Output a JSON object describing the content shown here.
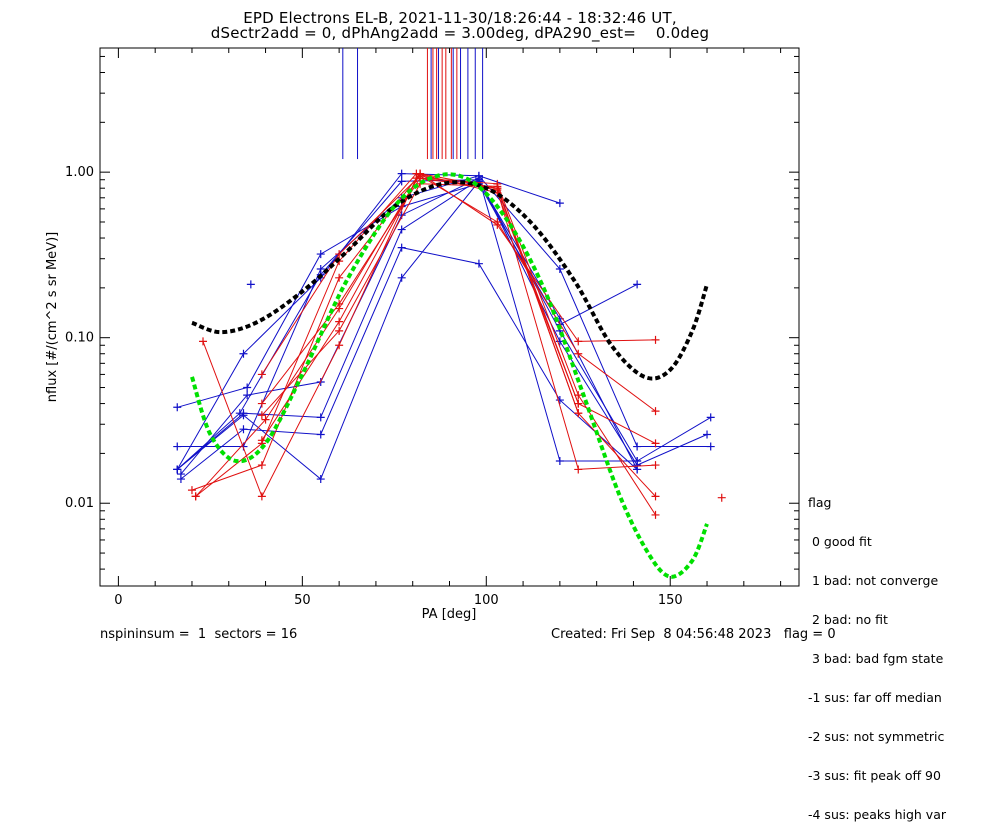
{
  "chart_data": {
    "type": "scatter",
    "title": "EPD Electrons EL-B, 2021-11-30/18:26:44 - 18:32:46 UT,",
    "subtitle": "dSectr2add = 0, dPhAng2add = 3.00deg, dPA290_est=    0.0deg",
    "xlabel": "PA [deg]",
    "ylabel": "nflux [#/(cm^2 s sr MeV)]",
    "xlim": [
      -5,
      185
    ],
    "ylim_log10": [
      -2.5,
      0.75
    ],
    "y_log": true,
    "x_ticks": [
      0,
      50,
      100,
      150
    ],
    "x_tick_labels": [
      "0",
      "50",
      "100",
      "150"
    ],
    "y_ticks": [
      0.01,
      0.1,
      1.0
    ],
    "y_tick_labels": [
      "0.01",
      "0.10",
      "1.00"
    ],
    "colors": {
      "red": "#e01010",
      "blue": "#1010c8",
      "green": "#00e000",
      "black": "#000000"
    },
    "marker_lines_top": {
      "blue": [
        61,
        65,
        85,
        87,
        91,
        93,
        95,
        97,
        99
      ],
      "red": [
        84,
        85.5,
        86.5,
        88,
        89,
        90.5,
        92
      ]
    },
    "sweeps_blue": [
      [
        [
          16,
          0.016
        ],
        [
          34,
          0.08
        ],
        [
          55,
          0.23
        ],
        [
          77,
          0.98
        ],
        [
          98,
          0.95
        ],
        [
          120,
          0.65
        ]
      ],
      [
        [
          16,
          0.022
        ],
        [
          34,
          0.022
        ],
        [
          55,
          0.26
        ],
        [
          77,
          0.7
        ],
        [
          98,
          0.95
        ],
        [
          120,
          0.26
        ],
        [
          141,
          0.022
        ],
        [
          161,
          0.022
        ]
      ],
      [
        [
          16,
          0.038
        ],
        [
          35,
          0.05
        ],
        [
          55,
          0.32
        ],
        [
          77,
          0.62
        ],
        [
          98,
          0.85
        ],
        [
          120,
          0.12
        ],
        [
          141,
          0.21
        ]
      ],
      [
        [
          16,
          0.016
        ],
        [
          34,
          0.035
        ],
        [
          55,
          0.033
        ],
        [
          77,
          0.45
        ],
        [
          98,
          0.9
        ],
        [
          120,
          0.11
        ],
        [
          141,
          0.018
        ],
        [
          161,
          0.033
        ]
      ],
      [
        [
          17,
          0.014
        ],
        [
          34,
          0.028
        ],
        [
          55,
          0.026
        ],
        [
          77,
          0.35
        ],
        [
          98,
          0.28
        ],
        [
          120,
          0.042
        ],
        [
          141,
          0.016
        ]
      ],
      [
        [
          17,
          0.015
        ],
        [
          35,
          0.045
        ],
        [
          55,
          0.054
        ],
        [
          77,
          0.55
        ],
        [
          98,
          0.92
        ],
        [
          120,
          0.018
        ],
        [
          141,
          0.018
        ]
      ],
      [
        [
          16,
          0.016
        ],
        [
          34,
          0.034
        ],
        [
          55,
          0.014
        ],
        [
          77,
          0.23
        ],
        [
          98,
          0.88
        ],
        [
          120,
          0.13
        ],
        [
          141,
          0.016
        ]
      ],
      [
        [
          16,
          0.016
        ],
        [
          33,
          0.035
        ],
        [
          55,
          0.24
        ],
        [
          77,
          0.88
        ],
        [
          98,
          0.9
        ],
        [
          120,
          0.095
        ],
        [
          141,
          0.017
        ],
        [
          160,
          0.026
        ]
      ]
    ],
    "sweeps_red": [
      [
        [
          21,
          0.011
        ],
        [
          39,
          0.023
        ],
        [
          60,
          0.29
        ],
        [
          81,
          0.98
        ],
        [
          103,
          0.5
        ],
        [
          125,
          0.08
        ],
        [
          146,
          0.036
        ]
      ],
      [
        [
          20,
          0.012
        ],
        [
          39,
          0.017
        ],
        [
          60,
          0.23
        ],
        [
          82,
          0.98
        ],
        [
          103,
          0.48
        ],
        [
          125,
          0.095
        ],
        [
          146,
          0.097
        ]
      ],
      [
        [
          21,
          0.011
        ],
        [
          40,
          0.032
        ],
        [
          60,
          0.15
        ],
        [
          82,
          0.97
        ],
        [
          103,
          0.75
        ],
        [
          125,
          0.04
        ],
        [
          146,
          0.023
        ]
      ],
      [
        [
          23,
          0.095
        ],
        [
          39,
          0.011
        ],
        [
          60,
          0.09
        ],
        [
          81,
          0.92
        ],
        [
          103,
          0.8
        ],
        [
          125,
          0.035
        ],
        [
          146,
          0.011
        ]
      ],
      [
        [
          39,
          0.04
        ],
        [
          60,
          0.16
        ],
        [
          82,
          0.92
        ],
        [
          103,
          0.85
        ],
        [
          125,
          0.045
        ],
        [
          146,
          0.0085
        ]
      ],
      [
        [
          39,
          0.06
        ],
        [
          60,
          0.32
        ],
        [
          82,
          0.95
        ],
        [
          103,
          0.78
        ],
        [
          125,
          0.016
        ],
        [
          146,
          0.017
        ]
      ],
      [
        [
          39,
          0.034
        ],
        [
          60,
          0.11
        ],
        [
          82,
          0.85
        ],
        [
          103,
          0.82
        ],
        [
          125,
          0.035
        ]
      ],
      [
        [
          39,
          0.024
        ],
        [
          60,
          0.125
        ],
        [
          82,
          0.98
        ],
        [
          103,
          0.8
        ],
        [
          125,
          0.04
        ]
      ]
    ],
    "extra_points": [
      {
        "x": 36,
        "y": 0.21,
        "c": "blue"
      },
      {
        "x": 164,
        "y": 0.0108,
        "c": "red"
      }
    ],
    "fit_black": [
      [
        20,
        0.123
      ],
      [
        28,
        0.108
      ],
      [
        38,
        0.125
      ],
      [
        50,
        0.19
      ],
      [
        62,
        0.33
      ],
      [
        75,
        0.62
      ],
      [
        88,
        0.85
      ],
      [
        100,
        0.8
      ],
      [
        112,
        0.5
      ],
      [
        124,
        0.22
      ],
      [
        134,
        0.09
      ],
      [
        143,
        0.058
      ],
      [
        150,
        0.064
      ],
      [
        156,
        0.11
      ],
      [
        160,
        0.21
      ]
    ],
    "fit_green": [
      [
        20,
        0.058
      ],
      [
        25,
        0.026
      ],
      [
        32,
        0.018
      ],
      [
        40,
        0.023
      ],
      [
        50,
        0.06
      ],
      [
        62,
        0.22
      ],
      [
        75,
        0.62
      ],
      [
        86,
        0.94
      ],
      [
        96,
        0.88
      ],
      [
        106,
        0.5
      ],
      [
        116,
        0.19
      ],
      [
        126,
        0.048
      ],
      [
        136,
        0.0115
      ],
      [
        144,
        0.005
      ],
      [
        150,
        0.0036
      ],
      [
        156,
        0.0045
      ],
      [
        160,
        0.0075
      ]
    ]
  },
  "legend": {
    "heading": "flag",
    "items": [
      " 0 good fit",
      " 1 bad: not converge",
      " 2 bad: no fit",
      " 3 bad: bad fgm state",
      "-1 sus: far off median",
      "-2 sus: not symmetric",
      "-3 sus: fit peak off 90",
      "-4 sus: peaks high var"
    ]
  },
  "footer": {
    "left": "nspininsum =  1  sectors = 16",
    "right": "Created: Fri Sep  8 04:56:48 2023   flag = 0"
  }
}
